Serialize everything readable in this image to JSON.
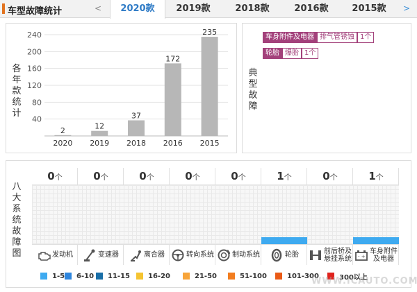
{
  "header": {
    "title": "车型故障统计",
    "prev_label": "<",
    "next_label": ">",
    "tabs": [
      {
        "label": "2020款",
        "active": true
      },
      {
        "label": "2019款",
        "active": false
      },
      {
        "label": "2018款",
        "active": false
      },
      {
        "label": "2016款",
        "active": false
      },
      {
        "label": "2015款",
        "active": false
      }
    ]
  },
  "chart_panel": {
    "side_label": "各年款统计"
  },
  "chart_data": {
    "type": "bar",
    "categories": [
      "2020",
      "2019",
      "2018",
      "2016",
      "2015"
    ],
    "values": [
      2,
      12,
      37,
      172,
      235
    ],
    "title": "",
    "xlabel": "",
    "ylabel": "",
    "ylim": [
      0,
      240
    ],
    "yticks": [
      40,
      80,
      120,
      160,
      200,
      240
    ],
    "grid": true,
    "bar_color": "#b7b7b7"
  },
  "typical_panel": {
    "side_label": "典型故障",
    "tags": [
      {
        "system": "车身附件及电器",
        "fault": "排气管锈蚀",
        "count": "1个"
      },
      {
        "system": "轮胎",
        "fault": "爆胎",
        "count": "1个"
      }
    ]
  },
  "systems_panel": {
    "side_label": "八大系统故障图",
    "unit": "个",
    "max_count": 1,
    "bar_color": "#3eaaf0",
    "systems": [
      {
        "name": "发动机",
        "count": "0",
        "icon": "engine-icon"
      },
      {
        "name": "变速器",
        "count": "0",
        "icon": "gear-shift-icon"
      },
      {
        "name": "离合器",
        "count": "0",
        "icon": "clutch-pedal-icon"
      },
      {
        "name": "转向系统",
        "count": "0",
        "icon": "steering-wheel-icon"
      },
      {
        "name": "制动系统",
        "count": "0",
        "icon": "brake-disc-icon"
      },
      {
        "name": "轮胎",
        "count": "1",
        "icon": "tire-icon"
      },
      {
        "name": "前后桥及悬挂系统",
        "count": "0",
        "icon": "axle-icon"
      },
      {
        "name": "车身附件及电器",
        "count": "1",
        "icon": "car-battery-icon"
      }
    ]
  },
  "legend": [
    {
      "label": "1-5",
      "color": "#3eaaf0"
    },
    {
      "label": "6-10",
      "color": "#2e86de"
    },
    {
      "label": "11-15",
      "color": "#1a6fa8"
    },
    {
      "label": "16-20",
      "color": "#f5c431"
    },
    {
      "label": "21-50",
      "color": "#f7a43a"
    },
    {
      "label": "51-100",
      "color": "#f27d1f"
    },
    {
      "label": "101-300",
      "color": "#ea5a16"
    },
    {
      "label": "300以上",
      "color": "#e0231d"
    }
  ],
  "watermark": "WWW.ICAUTO.COM.CN"
}
